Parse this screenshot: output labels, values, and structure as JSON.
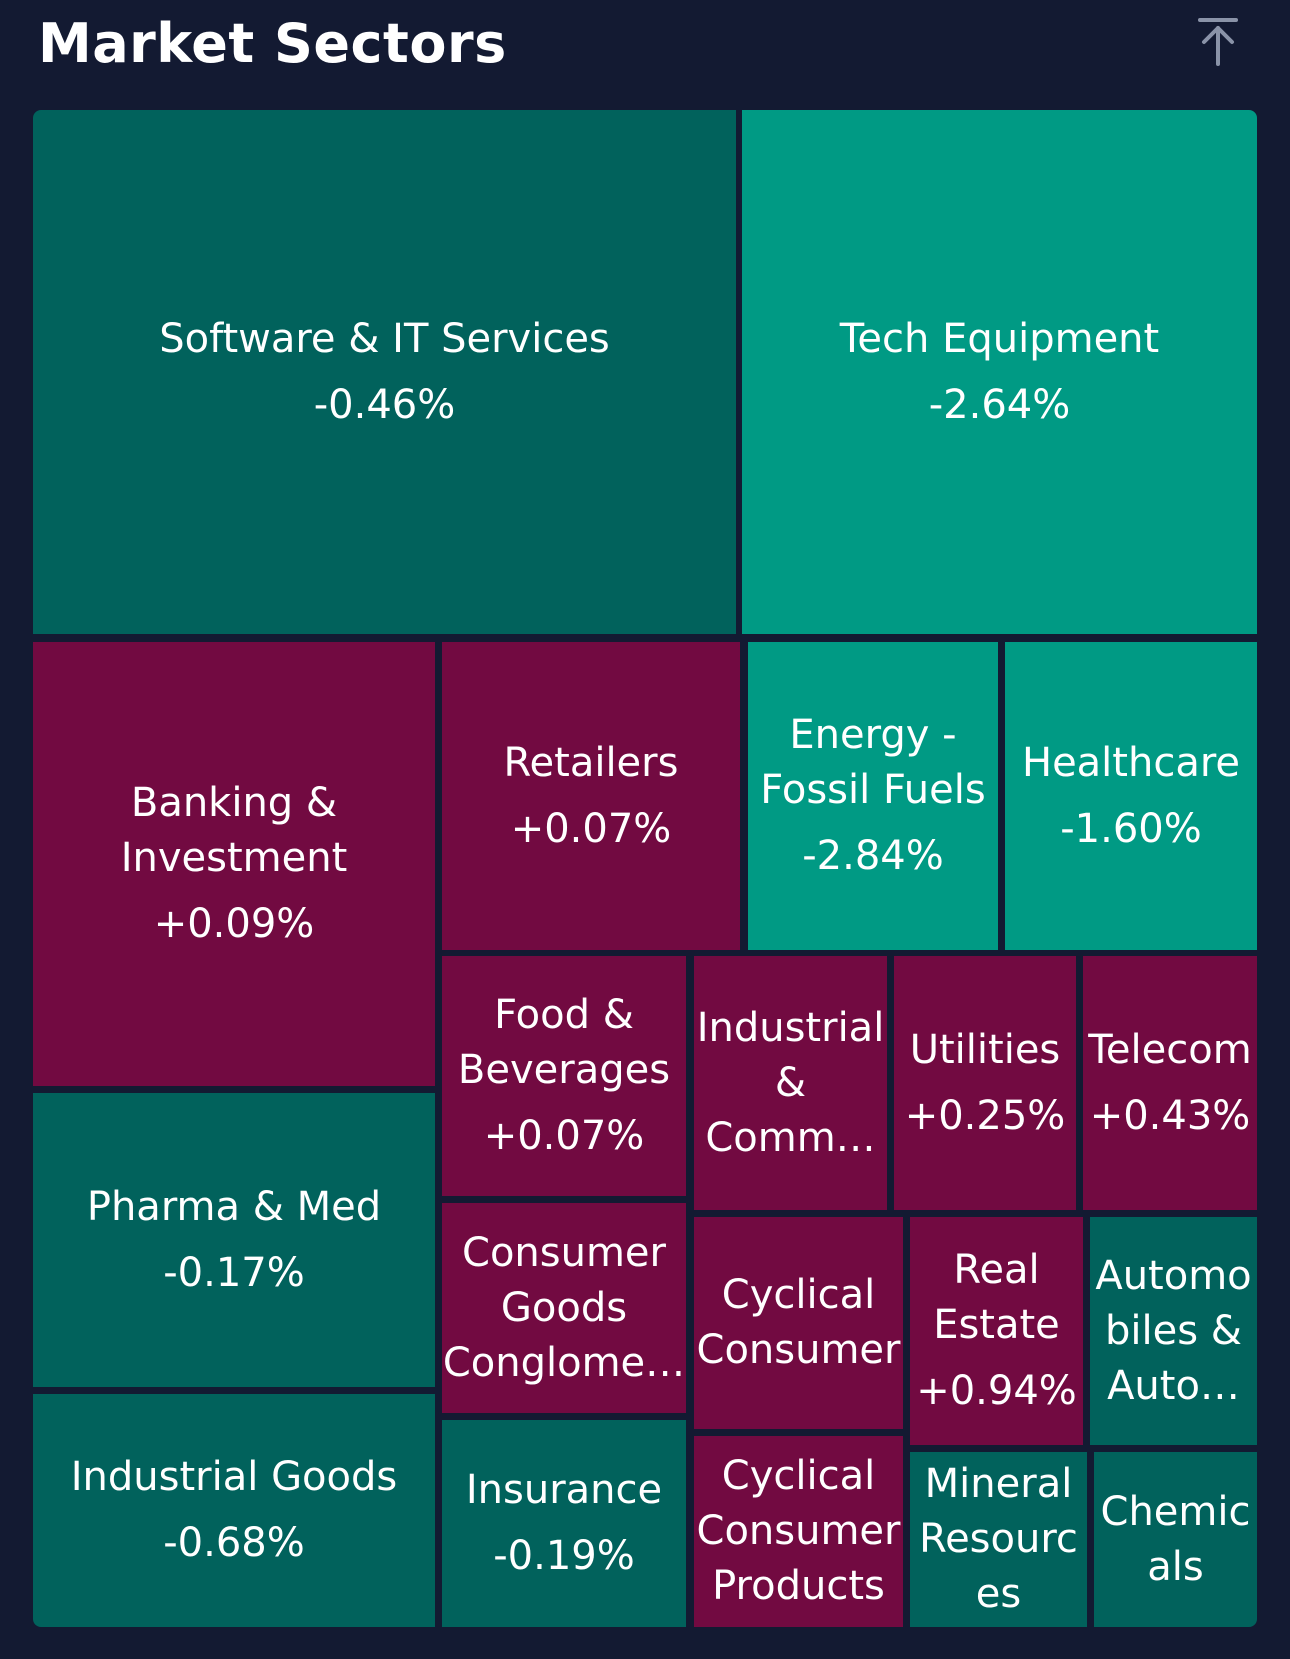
{
  "header": {
    "title": "Market Sectors",
    "collapse_icon": "arrow-up-to-line-icon"
  },
  "colors": {
    "background": "#131a32",
    "dark_teal": "#01625c",
    "bright_teal": "#009a84",
    "magenta": "#720a41"
  },
  "chart_data": {
    "type": "treemap",
    "title": "Market Sectors",
    "sectors": [
      {
        "id": "software-it-services",
        "name": "Software & IT Services",
        "lines": [
          "Software & IT Services"
        ],
        "change": "-0.46%",
        "value": -0.46,
        "color": "#01625c"
      },
      {
        "id": "tech-equipment",
        "name": "Tech Equipment",
        "lines": [
          "Tech Equipment"
        ],
        "change": "-2.64%",
        "value": -2.64,
        "color": "#009a84"
      },
      {
        "id": "banking-investment",
        "name": "Banking & Investment",
        "lines": [
          "Banking &",
          "Investment"
        ],
        "change": "+0.09%",
        "value": 0.09,
        "color": "#720a41"
      },
      {
        "id": "retailers",
        "name": "Retailers",
        "lines": [
          "Retailers"
        ],
        "change": "+0.07%",
        "value": 0.07,
        "color": "#720a41"
      },
      {
        "id": "energy-fossil-fuels",
        "name": "Energy - Fossil Fuels",
        "lines": [
          "Energy -",
          "Fossil Fuels"
        ],
        "change": "-2.84%",
        "value": -2.84,
        "color": "#009a84"
      },
      {
        "id": "healthcare",
        "name": "Healthcare",
        "lines": [
          "Healthcare"
        ],
        "change": "-1.60%",
        "value": -1.6,
        "color": "#009a84"
      },
      {
        "id": "pharma-med",
        "name": "Pharma & Med",
        "lines": [
          "Pharma & Med"
        ],
        "change": "-0.17%",
        "value": -0.17,
        "color": "#01625c"
      },
      {
        "id": "industrial-goods",
        "name": "Industrial Goods",
        "lines": [
          "Industrial Goods"
        ],
        "change": "-0.68%",
        "value": -0.68,
        "color": "#01625c"
      },
      {
        "id": "food-beverages",
        "name": "Food & Beverages",
        "lines": [
          "Food &",
          "Beverages"
        ],
        "change": "+0.07%",
        "value": 0.07,
        "color": "#720a41"
      },
      {
        "id": "consumer-goods-conglomerates",
        "name": "Consumer Goods Conglome…",
        "lines": [
          "Consumer",
          "Goods",
          "Conglome…"
        ],
        "change": "",
        "value": null,
        "color": "#720a41"
      },
      {
        "id": "insurance",
        "name": "Insurance",
        "lines": [
          "Insurance"
        ],
        "change": "-0.19%",
        "value": -0.19,
        "color": "#01625c"
      },
      {
        "id": "industrial-comm",
        "name": "Industrial & Comm…",
        "lines": [
          "Industrial",
          "&",
          "Comm…"
        ],
        "change": "",
        "value": null,
        "color": "#720a41"
      },
      {
        "id": "utilities",
        "name": "Utilities",
        "lines": [
          "Utilities"
        ],
        "change": "+0.25%",
        "value": 0.25,
        "color": "#720a41"
      },
      {
        "id": "telecom",
        "name": "Telecom",
        "lines": [
          "Telecom"
        ],
        "change": "+0.43%",
        "value": 0.43,
        "color": "#720a41"
      },
      {
        "id": "cyclical-consumer",
        "name": "Cyclical Consumer",
        "lines": [
          "Cyclical",
          "Consumer"
        ],
        "change": "",
        "value": null,
        "color": "#720a41"
      },
      {
        "id": "real-estate",
        "name": "Real Estate",
        "lines": [
          "Real",
          "Estate"
        ],
        "change": "+0.94%",
        "value": 0.94,
        "color": "#720a41"
      },
      {
        "id": "automobiles-auto",
        "name": "Automobiles & Auto…",
        "lines": [
          "Automo",
          "biles &",
          "Auto…"
        ],
        "change": "",
        "value": null,
        "color": "#01625c"
      },
      {
        "id": "cyclical-consumer-products",
        "name": "Cyclical Consumer Products",
        "lines": [
          "Cyclical",
          "Consumer",
          "Products"
        ],
        "change": "",
        "value": null,
        "color": "#720a41"
      },
      {
        "id": "mineral-resources",
        "name": "Mineral Resources",
        "lines": [
          "Mineral",
          "Resourc",
          "es"
        ],
        "change": "",
        "value": null,
        "color": "#01625c"
      },
      {
        "id": "chemicals",
        "name": "Chemicals",
        "lines": [
          "Chemic",
          "als"
        ],
        "change": "",
        "value": null,
        "color": "#01625c"
      }
    ]
  }
}
